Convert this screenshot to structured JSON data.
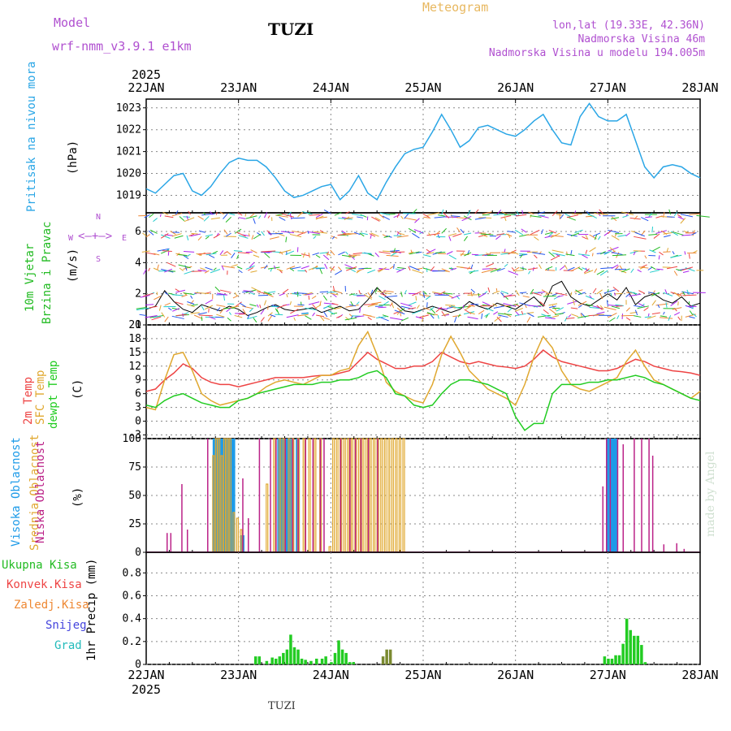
{
  "header": {
    "model_label": "Model",
    "model_version": "wrf-nmm_v3.9.1  e1km",
    "station": "TUZI",
    "product": "Meteogram",
    "coords": "lon,lat (19.33E, 42.36N)",
    "altitude": "Nadmorska Visina 46m",
    "model_altitude": "Nadmorska Visina u modelu 194.005m"
  },
  "footer": {
    "station": "TUZI",
    "credit": "made by Angel"
  },
  "colors": {
    "pressure": "#2aa6e6",
    "wind_label": "#22bb22",
    "temp2m": "#ee4444",
    "sfc": "#e0a830",
    "dewpt": "#22cc22",
    "high_cloud": "#1e9be8",
    "mid_cloud": "#e0a830",
    "low_cloud": "#bb2288",
    "conv": "#ee4444",
    "frozen": "#ee8833",
    "snow": "#4444dd",
    "graupel": "#22bbbb",
    "purple": "#b050d0"
  },
  "chart_data": [
    {
      "type": "line",
      "id": "pressure",
      "ylabel": [
        "Pritisak na nivou mora",
        "(hPa)"
      ],
      "ylim": [
        1018.2,
        1023.4
      ],
      "yticks": [
        1019,
        1020,
        1021,
        1022,
        1023
      ],
      "x_top_labels": [
        "22JAN",
        "23JAN",
        "24JAN",
        "25JAN",
        "26JAN",
        "27JAN",
        "28JAN"
      ],
      "year_top": "2025",
      "x": [
        0,
        0.1,
        0.2,
        0.3,
        0.4,
        0.5,
        0.6,
        0.7,
        0.8,
        0.9,
        1.0,
        1.1,
        1.2,
        1.3,
        1.4,
        1.5,
        1.6,
        1.7,
        1.8,
        1.9,
        2.0,
        2.1,
        2.2,
        2.3,
        2.4,
        2.5,
        2.6,
        2.7,
        2.8,
        2.9,
        3.0,
        3.1,
        3.2,
        3.3,
        3.4,
        3.5,
        3.6,
        3.7,
        3.8,
        3.9,
        4.0,
        4.1,
        4.2,
        4.3,
        4.4,
        4.5,
        4.6,
        4.7,
        4.8,
        4.9,
        5.0,
        5.1,
        5.2,
        5.3,
        5.4,
        5.5,
        5.6,
        5.7,
        5.8,
        5.9,
        6.0
      ],
      "series": [
        {
          "values": [
            1019.3,
            1019.1,
            1019.5,
            1019.9,
            1020.0,
            1019.2,
            1019.0,
            1019.4,
            1020.0,
            1020.5,
            1020.7,
            1020.6,
            1020.6,
            1020.3,
            1019.8,
            1019.2,
            1018.9,
            1019.0,
            1019.2,
            1019.4,
            1019.5,
            1018.8,
            1019.2,
            1019.9,
            1019.1,
            1018.8,
            1019.6,
            1020.3,
            1020.9,
            1021.1,
            1021.2,
            1021.9,
            1022.7,
            1022.0,
            1021.2,
            1021.5,
            1022.1,
            1022.2,
            1022.0,
            1021.8,
            1021.7,
            1022.0,
            1022.4,
            1022.7,
            1022.0,
            1021.4,
            1021.3,
            1022.6,
            1023.2,
            1022.6,
            1022.4,
            1022.4,
            1022.7,
            1021.5,
            1020.3,
            1019.8,
            1020.3,
            1020.4,
            1020.3,
            1020.0,
            1019.8
          ]
        }
      ]
    },
    {
      "type": "line",
      "id": "wind",
      "ylabel": [
        "10m Vjetar",
        "Brzina i Pravac",
        "(m/s)"
      ],
      "compass": {
        "n": "N",
        "s": "S",
        "e": "E",
        "w": "W"
      },
      "ylim": [
        0,
        7.2
      ],
      "yticks": [
        0,
        2,
        4,
        6
      ],
      "series": [
        {
          "name": "",
          "values": [
            1.0,
            1.2,
            2.2,
            1.5,
            1.0,
            0.8,
            1.3,
            1.1,
            0.9,
            1.2,
            1.0,
            0.6,
            0.8,
            1.1,
            1.3,
            1.0,
            0.9,
            1.0,
            1.1,
            0.8,
            1.0,
            1.2,
            0.9,
            1.0,
            1.6,
            2.4,
            1.8,
            1.4,
            0.9,
            0.8,
            1.0,
            1.2,
            1.0,
            0.8,
            1.0,
            1.5,
            1.2,
            1.0,
            1.4,
            1.2,
            1.0,
            1.4,
            1.8,
            1.2,
            2.5,
            2.8,
            1.8,
            1.4,
            1.2,
            1.6,
            2.0,
            1.6,
            2.4,
            1.3,
            1.8,
            2.0,
            1.6,
            1.4,
            1.8,
            1.2,
            1.4
          ]
        }
      ]
    },
    {
      "type": "line",
      "id": "temperature",
      "ylabel": [
        "2m Temp",
        "SFC Temp",
        "dewpt Temp",
        "(C)"
      ],
      "ylim": [
        -3.8,
        21
      ],
      "yticks": [
        -3,
        0,
        3,
        6,
        9,
        12,
        15,
        18,
        21
      ],
      "series": [
        {
          "name": "2m Temp",
          "values": [
            6.5,
            7.0,
            9.0,
            10.5,
            12.5,
            11.5,
            9.5,
            8.5,
            8.0,
            8.0,
            7.5,
            8.0,
            8.5,
            9.0,
            9.5,
            9.5,
            9.5,
            9.5,
            9.8,
            10.0,
            10.0,
            10.5,
            11.0,
            13.0,
            15.0,
            13.5,
            12.5,
            11.5,
            11.5,
            12.0,
            12.0,
            13.0,
            15.0,
            14.0,
            13.0,
            12.5,
            13.0,
            12.5,
            12.0,
            11.8,
            11.5,
            12.0,
            13.5,
            15.5,
            14.0,
            13.0,
            12.5,
            12.0,
            11.5,
            11.0,
            11.0,
            11.5,
            12.5,
            13.5,
            13.0,
            12.0,
            11.5,
            11.0,
            10.8,
            10.5,
            10.0
          ]
        },
        {
          "name": "SFC Temp",
          "values": [
            3.0,
            2.5,
            9.0,
            14.5,
            15.0,
            11.0,
            6.0,
            4.5,
            3.5,
            4.0,
            4.5,
            5.0,
            6.0,
            7.5,
            8.5,
            9.0,
            8.5,
            8.0,
            9.0,
            10.0,
            10.0,
            11.0,
            11.5,
            16.5,
            19.5,
            14.5,
            8.5,
            6.5,
            5.5,
            4.5,
            4.0,
            8.0,
            14.5,
            18.5,
            15.0,
            11.0,
            9.0,
            7.0,
            6.0,
            5.0,
            3.5,
            8.0,
            14.0,
            18.5,
            16.0,
            11.0,
            8.0,
            7.0,
            6.5,
            7.5,
            8.5,
            9.5,
            13.0,
            15.5,
            12.0,
            9.0,
            8.0,
            7.0,
            6.0,
            5.0,
            6.5
          ]
        },
        {
          "name": "dewpt Temp",
          "values": [
            3.5,
            3.0,
            4.5,
            5.5,
            6.0,
            5.0,
            4.0,
            3.5,
            3.0,
            3.0,
            4.5,
            5.0,
            6.0,
            6.5,
            7.0,
            7.5,
            8.0,
            8.0,
            8.0,
            8.5,
            8.5,
            9.0,
            9.0,
            9.5,
            10.5,
            11.0,
            9.5,
            6.0,
            5.5,
            3.5,
            3.0,
            3.5,
            6.0,
            8.0,
            9.0,
            9.0,
            8.5,
            8.0,
            7.0,
            6.0,
            1.0,
            -2.0,
            -0.5,
            -0.5,
            6.0,
            8.0,
            8.0,
            8.0,
            8.5,
            8.5,
            9.0,
            9.0,
            9.5,
            10.0,
            9.5,
            8.5,
            8.0,
            7.0,
            6.0,
            5.0,
            4.5
          ]
        }
      ]
    },
    {
      "type": "bar",
      "id": "cloud",
      "ylabel": [
        "Visoka Oblacnost",
        "Srednja Oblacnost",
        "Niska  Oblacnost",
        "(%)"
      ],
      "ylim": [
        0,
        100
      ],
      "yticks": [
        0,
        25,
        50,
        75,
        100
      ],
      "series": [
        {
          "name": "Visoka Oblacnost",
          "x": [
            0.72,
            0.74,
            0.76,
            0.8,
            0.84,
            0.88,
            0.92,
            1.02,
            1.42,
            1.46,
            1.5,
            1.52,
            1.56,
            1.62,
            4.98,
            5.0,
            5.02,
            5.04,
            5.06
          ],
          "values": [
            100,
            100,
            100,
            100,
            100,
            100,
            100,
            15,
            100,
            100,
            100,
            100,
            100,
            100,
            100,
            100,
            100,
            100,
            100
          ]
        },
        {
          "name": "Srednja Oblacnost",
          "x": [
            0.72,
            0.75,
            0.78,
            0.81,
            0.84,
            0.87,
            0.9,
            0.94,
            0.98,
            1.02,
            1.3,
            1.38,
            1.44,
            1.48,
            1.54,
            1.58,
            1.64,
            1.7,
            1.76,
            1.82,
            1.88,
            1.98,
            2.02,
            2.06,
            2.1,
            2.14,
            2.18,
            2.22,
            2.26,
            2.3,
            2.34,
            2.38,
            2.42,
            2.46,
            2.5,
            2.54,
            2.58,
            2.62,
            2.66,
            2.7,
            2.74,
            2.78
          ],
          "values": [
            85,
            100,
            100,
            85,
            100,
            100,
            100,
            35,
            30,
            20,
            60,
            100,
            100,
            100,
            100,
            100,
            100,
            100,
            100,
            100,
            100,
            5,
            100,
            100,
            100,
            100,
            100,
            100,
            100,
            100,
            100,
            100,
            100,
            100,
            100,
            100,
            100,
            100,
            100,
            100,
            100,
            100
          ]
        },
        {
          "name": "Niska  Oblacnost",
          "x": [
            0.22,
            0.26,
            0.38,
            0.44,
            0.66,
            1.04,
            1.1,
            1.22,
            1.34,
            1.4,
            1.5,
            1.58,
            1.64,
            1.72,
            1.8,
            1.88,
            1.92,
            2.1,
            2.2,
            2.26,
            2.32,
            2.4,
            2.5,
            4.94,
            4.98,
            5.02,
            5.1,
            5.16,
            5.28,
            5.36,
            5.44,
            5.48,
            5.6,
            5.74,
            5.82
          ],
          "values": [
            17,
            17,
            60,
            20,
            100,
            65,
            30,
            100,
            100,
            100,
            100,
            100,
            100,
            100,
            100,
            100,
            100,
            100,
            100,
            100,
            100,
            100,
            100,
            58,
            100,
            100,
            100,
            95,
            100,
            100,
            100,
            85,
            7,
            8,
            3
          ]
        }
      ]
    },
    {
      "type": "bar",
      "id": "precip",
      "ylabel": [
        "1hr Precip (mm)"
      ],
      "legend": [
        "Ukupna  Kisa",
        "Konvek.Kisa",
        "Zaledj.Kisa",
        "Snijeg",
        "Grad"
      ],
      "ylim": [
        0,
        0.98
      ],
      "yticks": [
        0,
        0.2,
        0.4,
        0.6,
        0.8
      ],
      "x_bottom_labels": [
        "22JAN",
        "23JAN",
        "24JAN",
        "25JAN",
        "26JAN",
        "27JAN",
        "28JAN"
      ],
      "year_bottom": "2025",
      "series": [
        {
          "name": "Ukupna  Kisa",
          "x": [
            1.17,
            1.21,
            1.29,
            1.35,
            1.39,
            1.43,
            1.47,
            1.51,
            1.55,
            1.59,
            1.63,
            1.67,
            1.71,
            1.77,
            1.83,
            1.89,
            1.93,
            1.99,
            2.03,
            2.07,
            2.11,
            2.15,
            2.19,
            2.23,
            2.55,
            2.59,
            2.63,
            4.95,
            4.99,
            5.03,
            5.07,
            5.11,
            5.15,
            5.19,
            5.23,
            5.27,
            5.31,
            5.35,
            5.39
          ],
          "values": [
            0.07,
            0.07,
            0.03,
            0.06,
            0.05,
            0.07,
            0.1,
            0.13,
            0.26,
            0.15,
            0.13,
            0.05,
            0.04,
            0.03,
            0.05,
            0.05,
            0.07,
            0.02,
            0.1,
            0.21,
            0.13,
            0.1,
            0.02,
            0.02,
            0.07,
            0.13,
            0.13,
            0.07,
            0.05,
            0.05,
            0.08,
            0.08,
            0.18,
            0.4,
            0.3,
            0.25,
            0.25,
            0.17,
            0.02
          ]
        }
      ]
    }
  ]
}
